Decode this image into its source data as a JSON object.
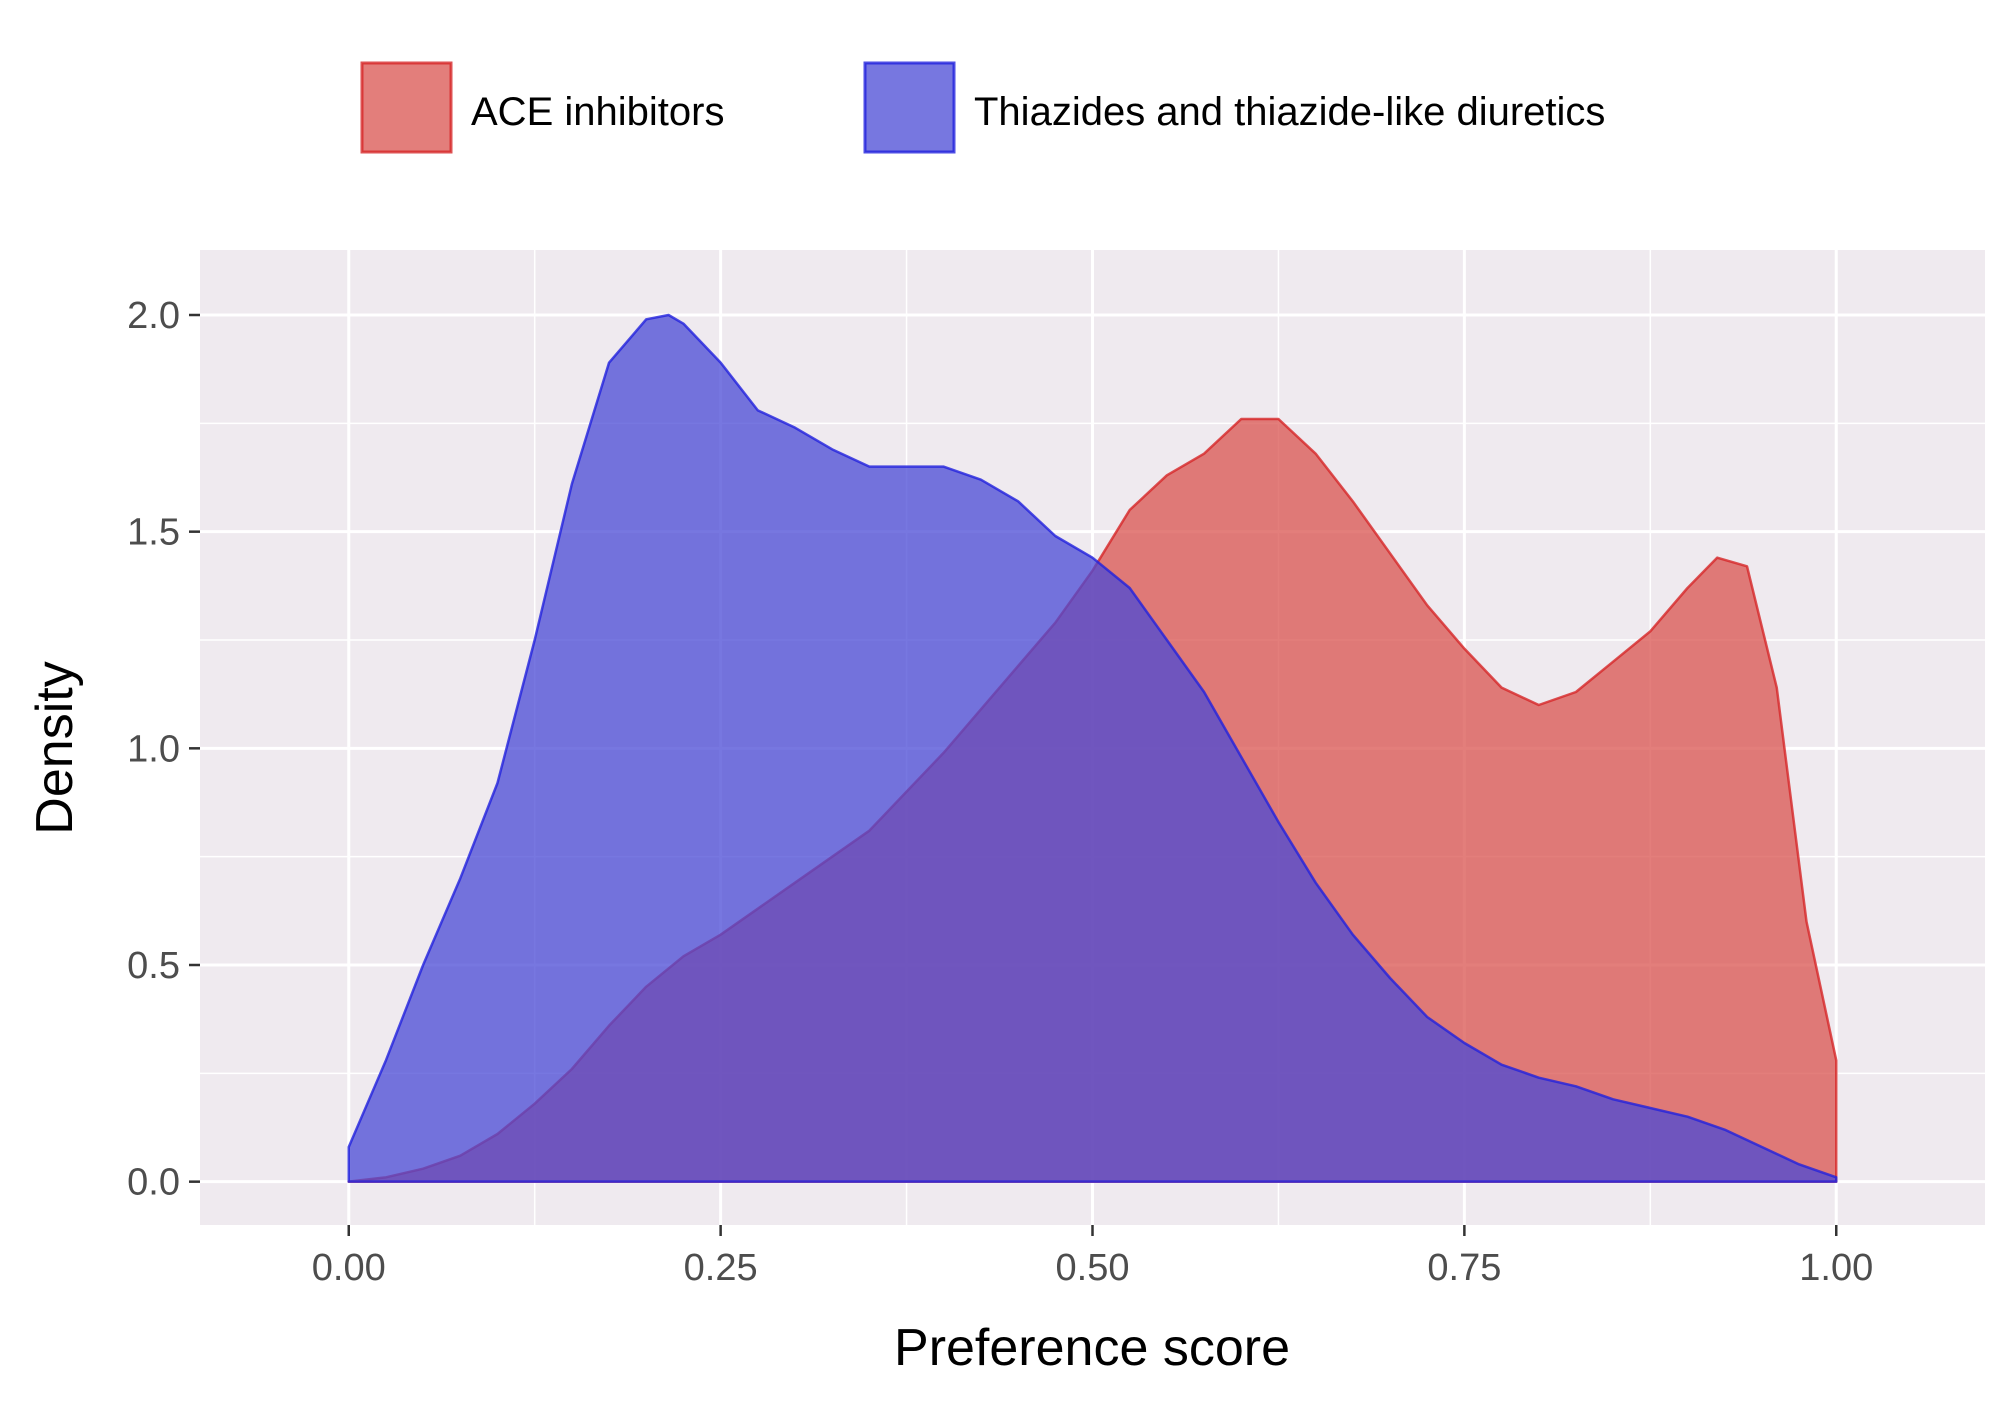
{
  "chart_data": {
    "type": "area",
    "title": "",
    "xlabel": "Preference score",
    "ylabel": "Density",
    "xlim": [
      -0.1,
      1.1
    ],
    "ylim": [
      -0.1,
      2.15
    ],
    "x_ticks": [
      0.0,
      0.25,
      0.5,
      0.75,
      1.0
    ],
    "x_tick_labels": [
      "0.00",
      "0.25",
      "0.50",
      "0.75",
      "1.00"
    ],
    "y_ticks": [
      0.0,
      0.5,
      1.0,
      1.5,
      2.0
    ],
    "y_tick_labels": [
      "0.0",
      "0.5",
      "1.0",
      "1.5",
      "2.0"
    ],
    "grid": true,
    "legend_position": "top",
    "legend": [
      "ACE inhibitors",
      "Thiazides and thiazide-like diuretics"
    ],
    "series": [
      {
        "name": "ACE inhibitors",
        "fill": "#d9534f",
        "stroke": "#d62728",
        "x": [
          0.0,
          0.025,
          0.05,
          0.075,
          0.1,
          0.125,
          0.15,
          0.175,
          0.2,
          0.225,
          0.25,
          0.275,
          0.3,
          0.325,
          0.35,
          0.375,
          0.4,
          0.425,
          0.45,
          0.475,
          0.5,
          0.525,
          0.55,
          0.575,
          0.6,
          0.625,
          0.65,
          0.675,
          0.7,
          0.725,
          0.75,
          0.775,
          0.8,
          0.825,
          0.85,
          0.875,
          0.9,
          0.92,
          0.94,
          0.96,
          0.98,
          1.0
        ],
        "y": [
          0.0,
          0.01,
          0.03,
          0.06,
          0.11,
          0.18,
          0.26,
          0.36,
          0.45,
          0.52,
          0.57,
          0.63,
          0.69,
          0.75,
          0.81,
          0.9,
          0.99,
          1.09,
          1.19,
          1.29,
          1.41,
          1.55,
          1.63,
          1.68,
          1.76,
          1.76,
          1.68,
          1.57,
          1.45,
          1.33,
          1.23,
          1.14,
          1.1,
          1.13,
          1.2,
          1.27,
          1.37,
          1.44,
          1.42,
          1.14,
          0.6,
          0.28
        ]
      },
      {
        "name": "Thiazides and thiazide-like diuretics",
        "fill": "#4a4ad6",
        "stroke": "#2222dd",
        "x": [
          0.0,
          0.025,
          0.05,
          0.075,
          0.1,
          0.125,
          0.15,
          0.175,
          0.2,
          0.215,
          0.225,
          0.25,
          0.275,
          0.3,
          0.325,
          0.35,
          0.375,
          0.4,
          0.425,
          0.45,
          0.475,
          0.5,
          0.525,
          0.55,
          0.575,
          0.6,
          0.625,
          0.65,
          0.675,
          0.7,
          0.725,
          0.75,
          0.775,
          0.8,
          0.825,
          0.85,
          0.875,
          0.9,
          0.925,
          0.95,
          0.975,
          1.0
        ],
        "y": [
          0.08,
          0.28,
          0.5,
          0.7,
          0.92,
          1.25,
          1.61,
          1.89,
          1.99,
          2.0,
          1.98,
          1.89,
          1.78,
          1.74,
          1.69,
          1.65,
          1.65,
          1.65,
          1.62,
          1.57,
          1.49,
          1.44,
          1.37,
          1.25,
          1.13,
          0.98,
          0.83,
          0.69,
          0.57,
          0.47,
          0.38,
          0.32,
          0.27,
          0.24,
          0.22,
          0.19,
          0.17,
          0.15,
          0.12,
          0.08,
          0.04,
          0.01
        ]
      }
    ]
  }
}
